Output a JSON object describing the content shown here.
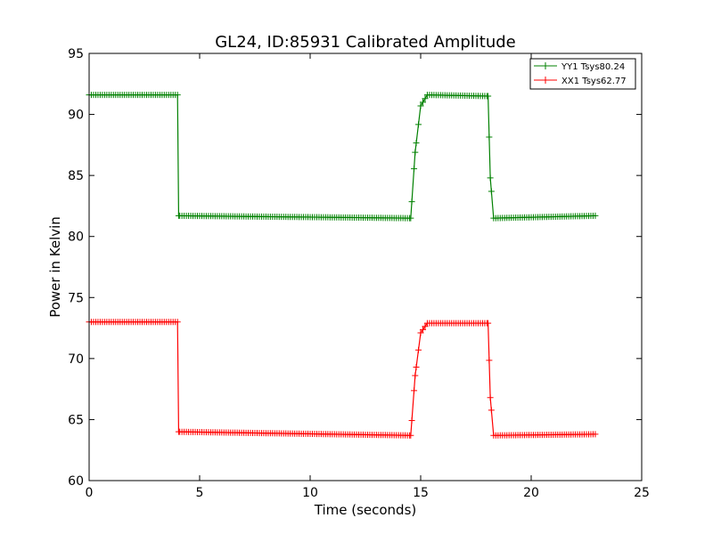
{
  "chart_data": {
    "type": "line",
    "title": "GL24, ID:85931 Calibrated Amplitude",
    "xlabel": "Time (seconds)",
    "ylabel": "Power in Kelvin",
    "xlim": [
      0,
      25
    ],
    "ylim": [
      60,
      95
    ],
    "xticks": [
      "0",
      "5",
      "10",
      "15",
      "20",
      "25"
    ],
    "yticks": [
      "60",
      "65",
      "70",
      "75",
      "80",
      "85",
      "90",
      "95"
    ],
    "grid": false,
    "legend_position": "top-right",
    "series": [
      {
        "name": "YY1 Tsys80.24",
        "color": "#008000",
        "marker": "plus",
        "x": [
          0.0,
          4.0,
          4.05,
          14.55,
          14.75,
          15.0,
          15.3,
          18.05,
          18.15,
          18.3,
          22.9
        ],
        "y": [
          91.6,
          91.6,
          81.7,
          81.5,
          86.9,
          90.7,
          91.6,
          91.5,
          84.8,
          81.5,
          81.7
        ]
      },
      {
        "name": "XX1 Tsys62.77",
        "color": "#ff0000",
        "marker": "plus",
        "x": [
          0.0,
          4.0,
          4.05,
          14.55,
          14.75,
          15.0,
          15.3,
          18.05,
          18.15,
          18.3,
          22.9
        ],
        "y": [
          73.0,
          73.0,
          64.0,
          63.7,
          68.6,
          72.1,
          72.9,
          72.9,
          66.8,
          63.7,
          63.8
        ]
      }
    ]
  }
}
